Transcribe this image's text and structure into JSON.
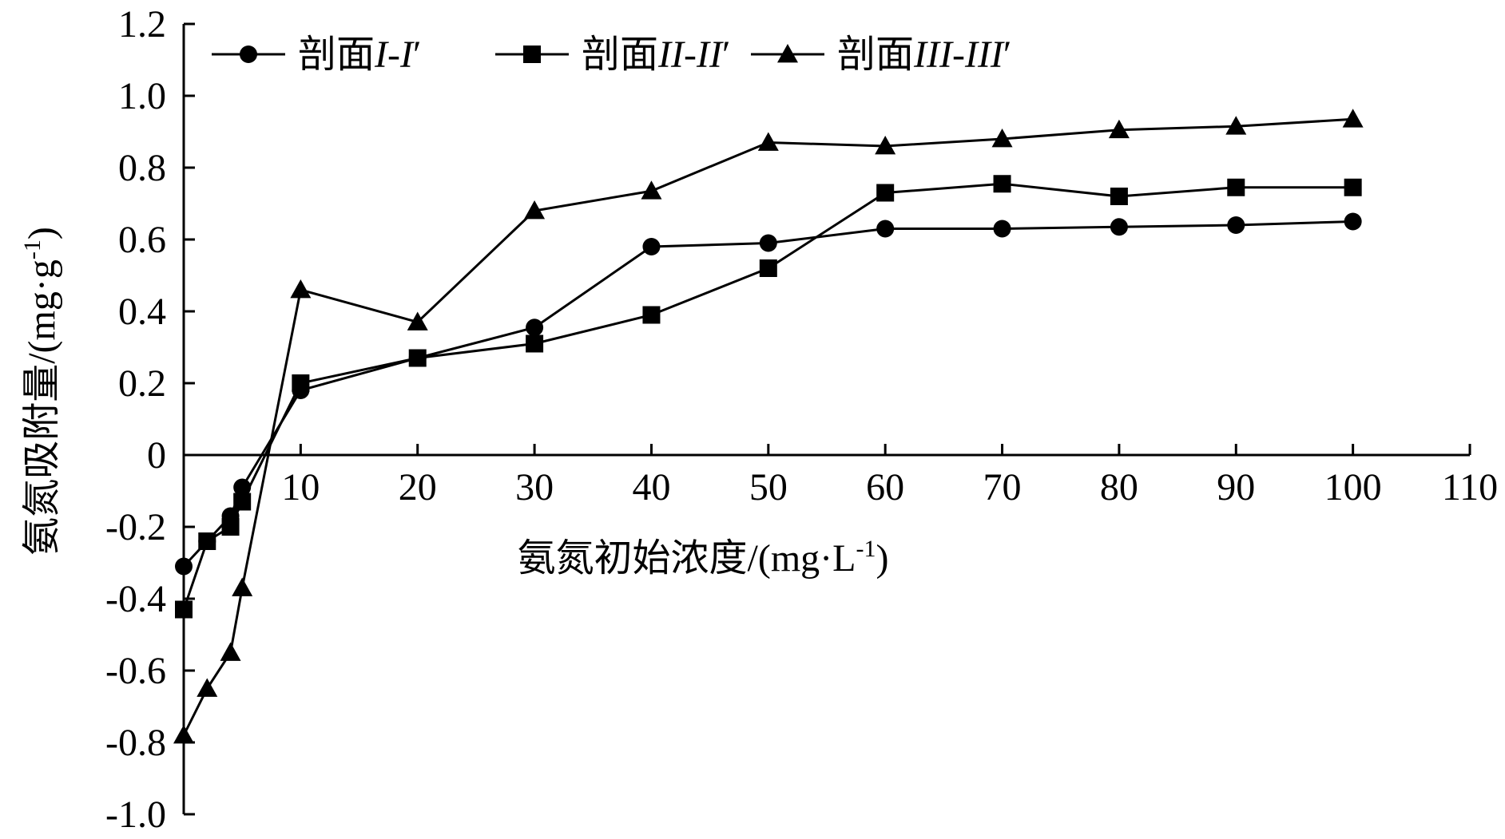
{
  "colors": {
    "foreground": "#000000",
    "background": "#ffffff"
  },
  "chart_data": {
    "type": "line",
    "title": "",
    "xlabel": "氨氮初始浓度/(mg·L-1)",
    "xlabel_parts": {
      "text": "氨氮初始浓度/(mg·L",
      "sup": "-1",
      "end": ")"
    },
    "ylabel": "氨氮吸附量/(mg·g-1)",
    "ylabel_parts": {
      "text": "氨氮吸附量/(mg·g",
      "sup": "-1",
      "end": ")"
    },
    "xlim": [
      0,
      110
    ],
    "ylim": [
      -1.0,
      1.2
    ],
    "xticks": [
      10,
      20,
      30,
      40,
      50,
      60,
      70,
      80,
      90,
      100,
      110
    ],
    "xtick_labels": [
      "10",
      "20",
      "30",
      "40",
      "50",
      "60",
      "70",
      "80",
      "90",
      "100",
      "110"
    ],
    "yticks": [
      -1.0,
      -0.8,
      -0.6,
      -0.4,
      -0.2,
      0,
      0.2,
      0.4,
      0.6,
      0.8,
      1.0,
      1.2
    ],
    "ytick_labels": [
      "-1.0",
      "-0.8",
      "-0.6",
      "-0.4",
      "-0.2",
      "0",
      "0.2",
      "0.4",
      "0.6",
      "0.8",
      "1.0",
      "1.2"
    ],
    "grid": false,
    "legend_position": "top-left",
    "series": [
      {
        "name": "剖面I-I′",
        "name_parts": {
          "prefix": "剖面",
          "italic": "I-I",
          "suffix": "′"
        },
        "marker": "circle",
        "x": [
          0,
          2,
          4,
          5,
          10,
          20,
          30,
          40,
          50,
          60,
          70,
          80,
          90,
          100
        ],
        "y": [
          -0.31,
          -0.24,
          -0.17,
          -0.09,
          0.18,
          0.27,
          0.355,
          0.58,
          0.59,
          0.63,
          0.63,
          0.635,
          0.64,
          0.65
        ]
      },
      {
        "name": "剖面II-II′",
        "name_parts": {
          "prefix": "剖面",
          "italic": "II-II",
          "suffix": "′"
        },
        "marker": "square",
        "x": [
          0,
          2,
          4,
          5,
          10,
          20,
          30,
          40,
          50,
          60,
          70,
          80,
          90,
          100
        ],
        "y": [
          -0.43,
          -0.24,
          -0.2,
          -0.13,
          0.2,
          0.27,
          0.31,
          0.39,
          0.52,
          0.73,
          0.755,
          0.72,
          0.745,
          0.745
        ]
      },
      {
        "name": "剖面III-III′",
        "name_parts": {
          "prefix": "剖面",
          "italic": "III-III",
          "suffix": "′"
        },
        "marker": "triangle",
        "x": [
          0,
          2,
          4,
          5,
          10,
          20,
          30,
          40,
          50,
          60,
          70,
          80,
          90,
          100
        ],
        "y": [
          -0.78,
          -0.65,
          -0.55,
          -0.37,
          0.46,
          0.37,
          0.68,
          0.735,
          0.87,
          0.86,
          0.88,
          0.905,
          0.915,
          0.935
        ]
      }
    ]
  }
}
